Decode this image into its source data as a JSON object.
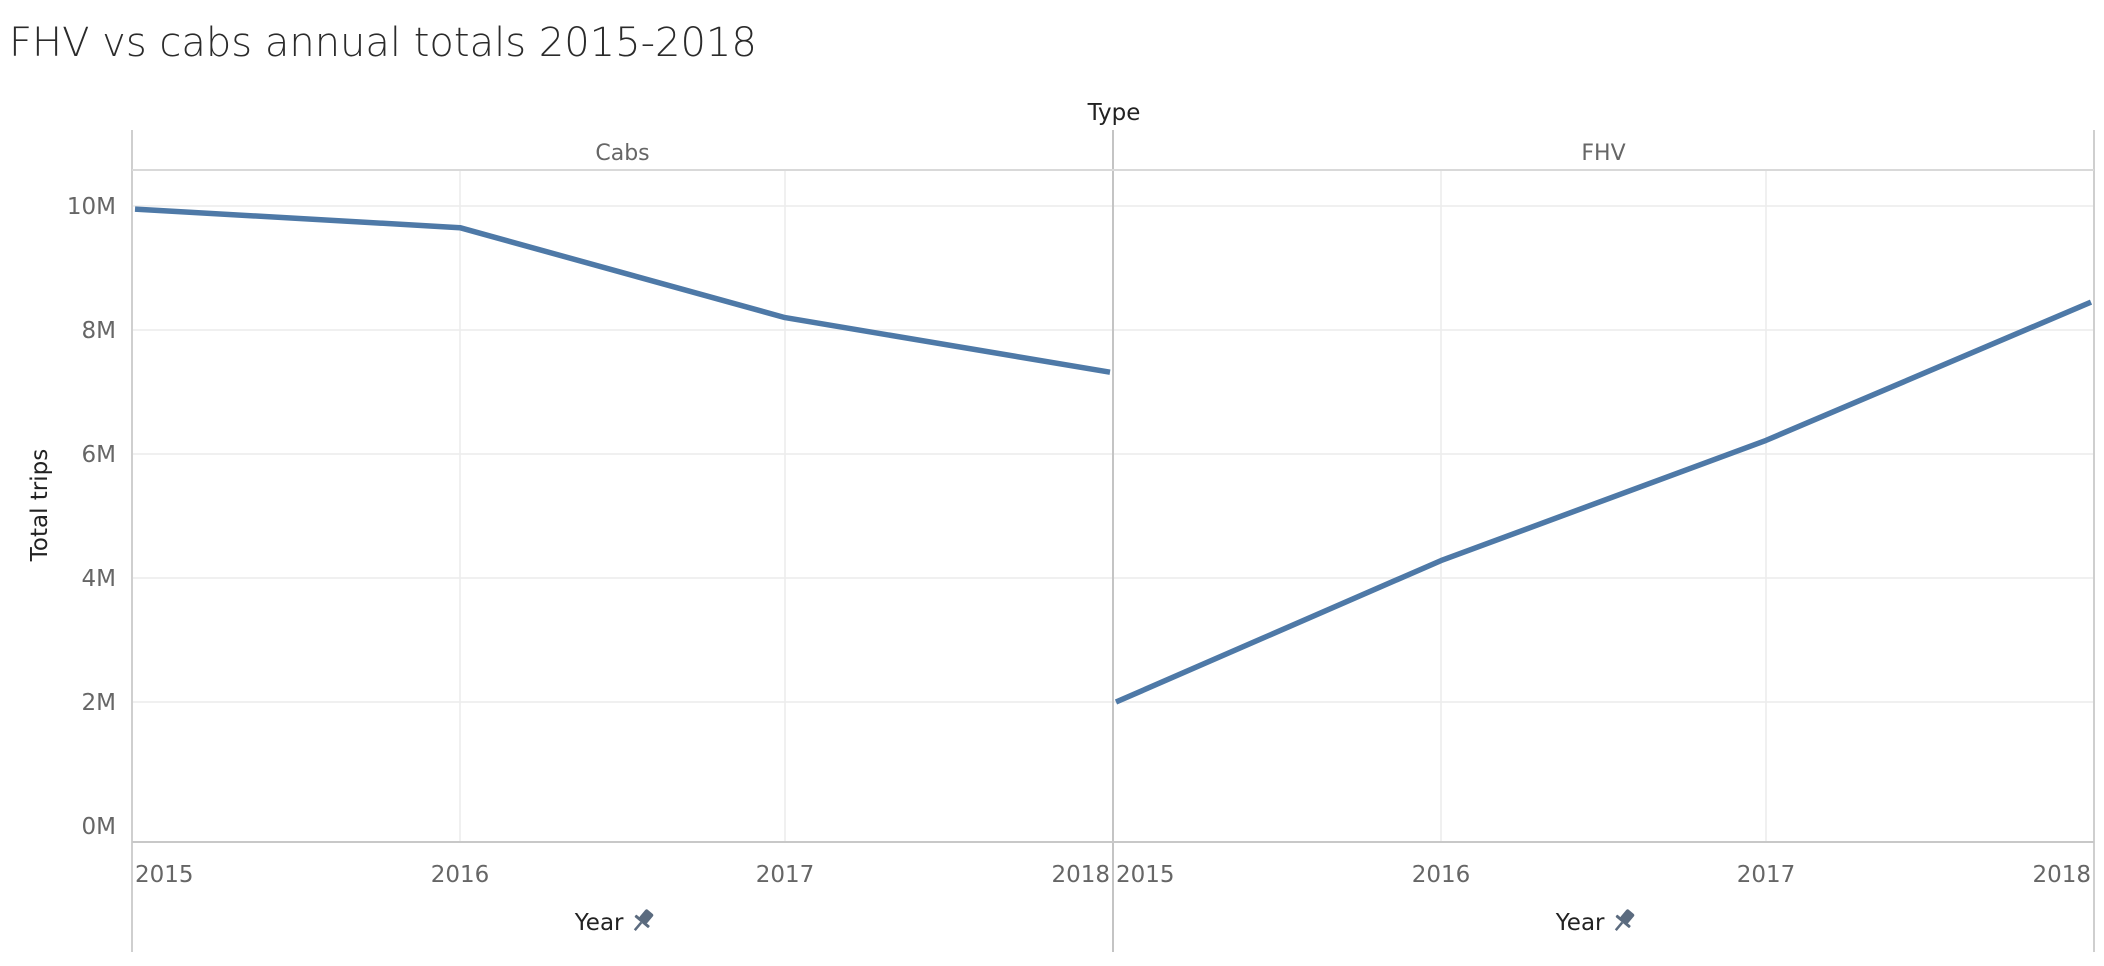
{
  "title": "FHV vs cabs annual totals 2015-2018",
  "chart_data": {
    "type": "line",
    "facet_header": "Type",
    "panels": [
      {
        "name": "Cabs",
        "x": [
          2015,
          2016,
          2017,
          2018
        ],
        "y": [
          9.95,
          9.65,
          8.2,
          7.32
        ]
      },
      {
        "name": "FHV",
        "x": [
          2015,
          2016,
          2017,
          2018
        ],
        "y": [
          2.0,
          4.28,
          6.22,
          8.45
        ]
      }
    ],
    "y_unit": "M",
    "yticks": [
      0,
      2,
      4,
      6,
      8,
      10
    ],
    "ytick_labels": [
      "0M",
      "2M",
      "4M",
      "6M",
      "8M",
      "10M"
    ],
    "xticks": [
      2015,
      2016,
      2017,
      2018
    ],
    "ylim": [
      0,
      10.5
    ],
    "ylabel": "Total trips",
    "xlabel": "Year",
    "line_color": "#4e79a7",
    "grid": true
  }
}
